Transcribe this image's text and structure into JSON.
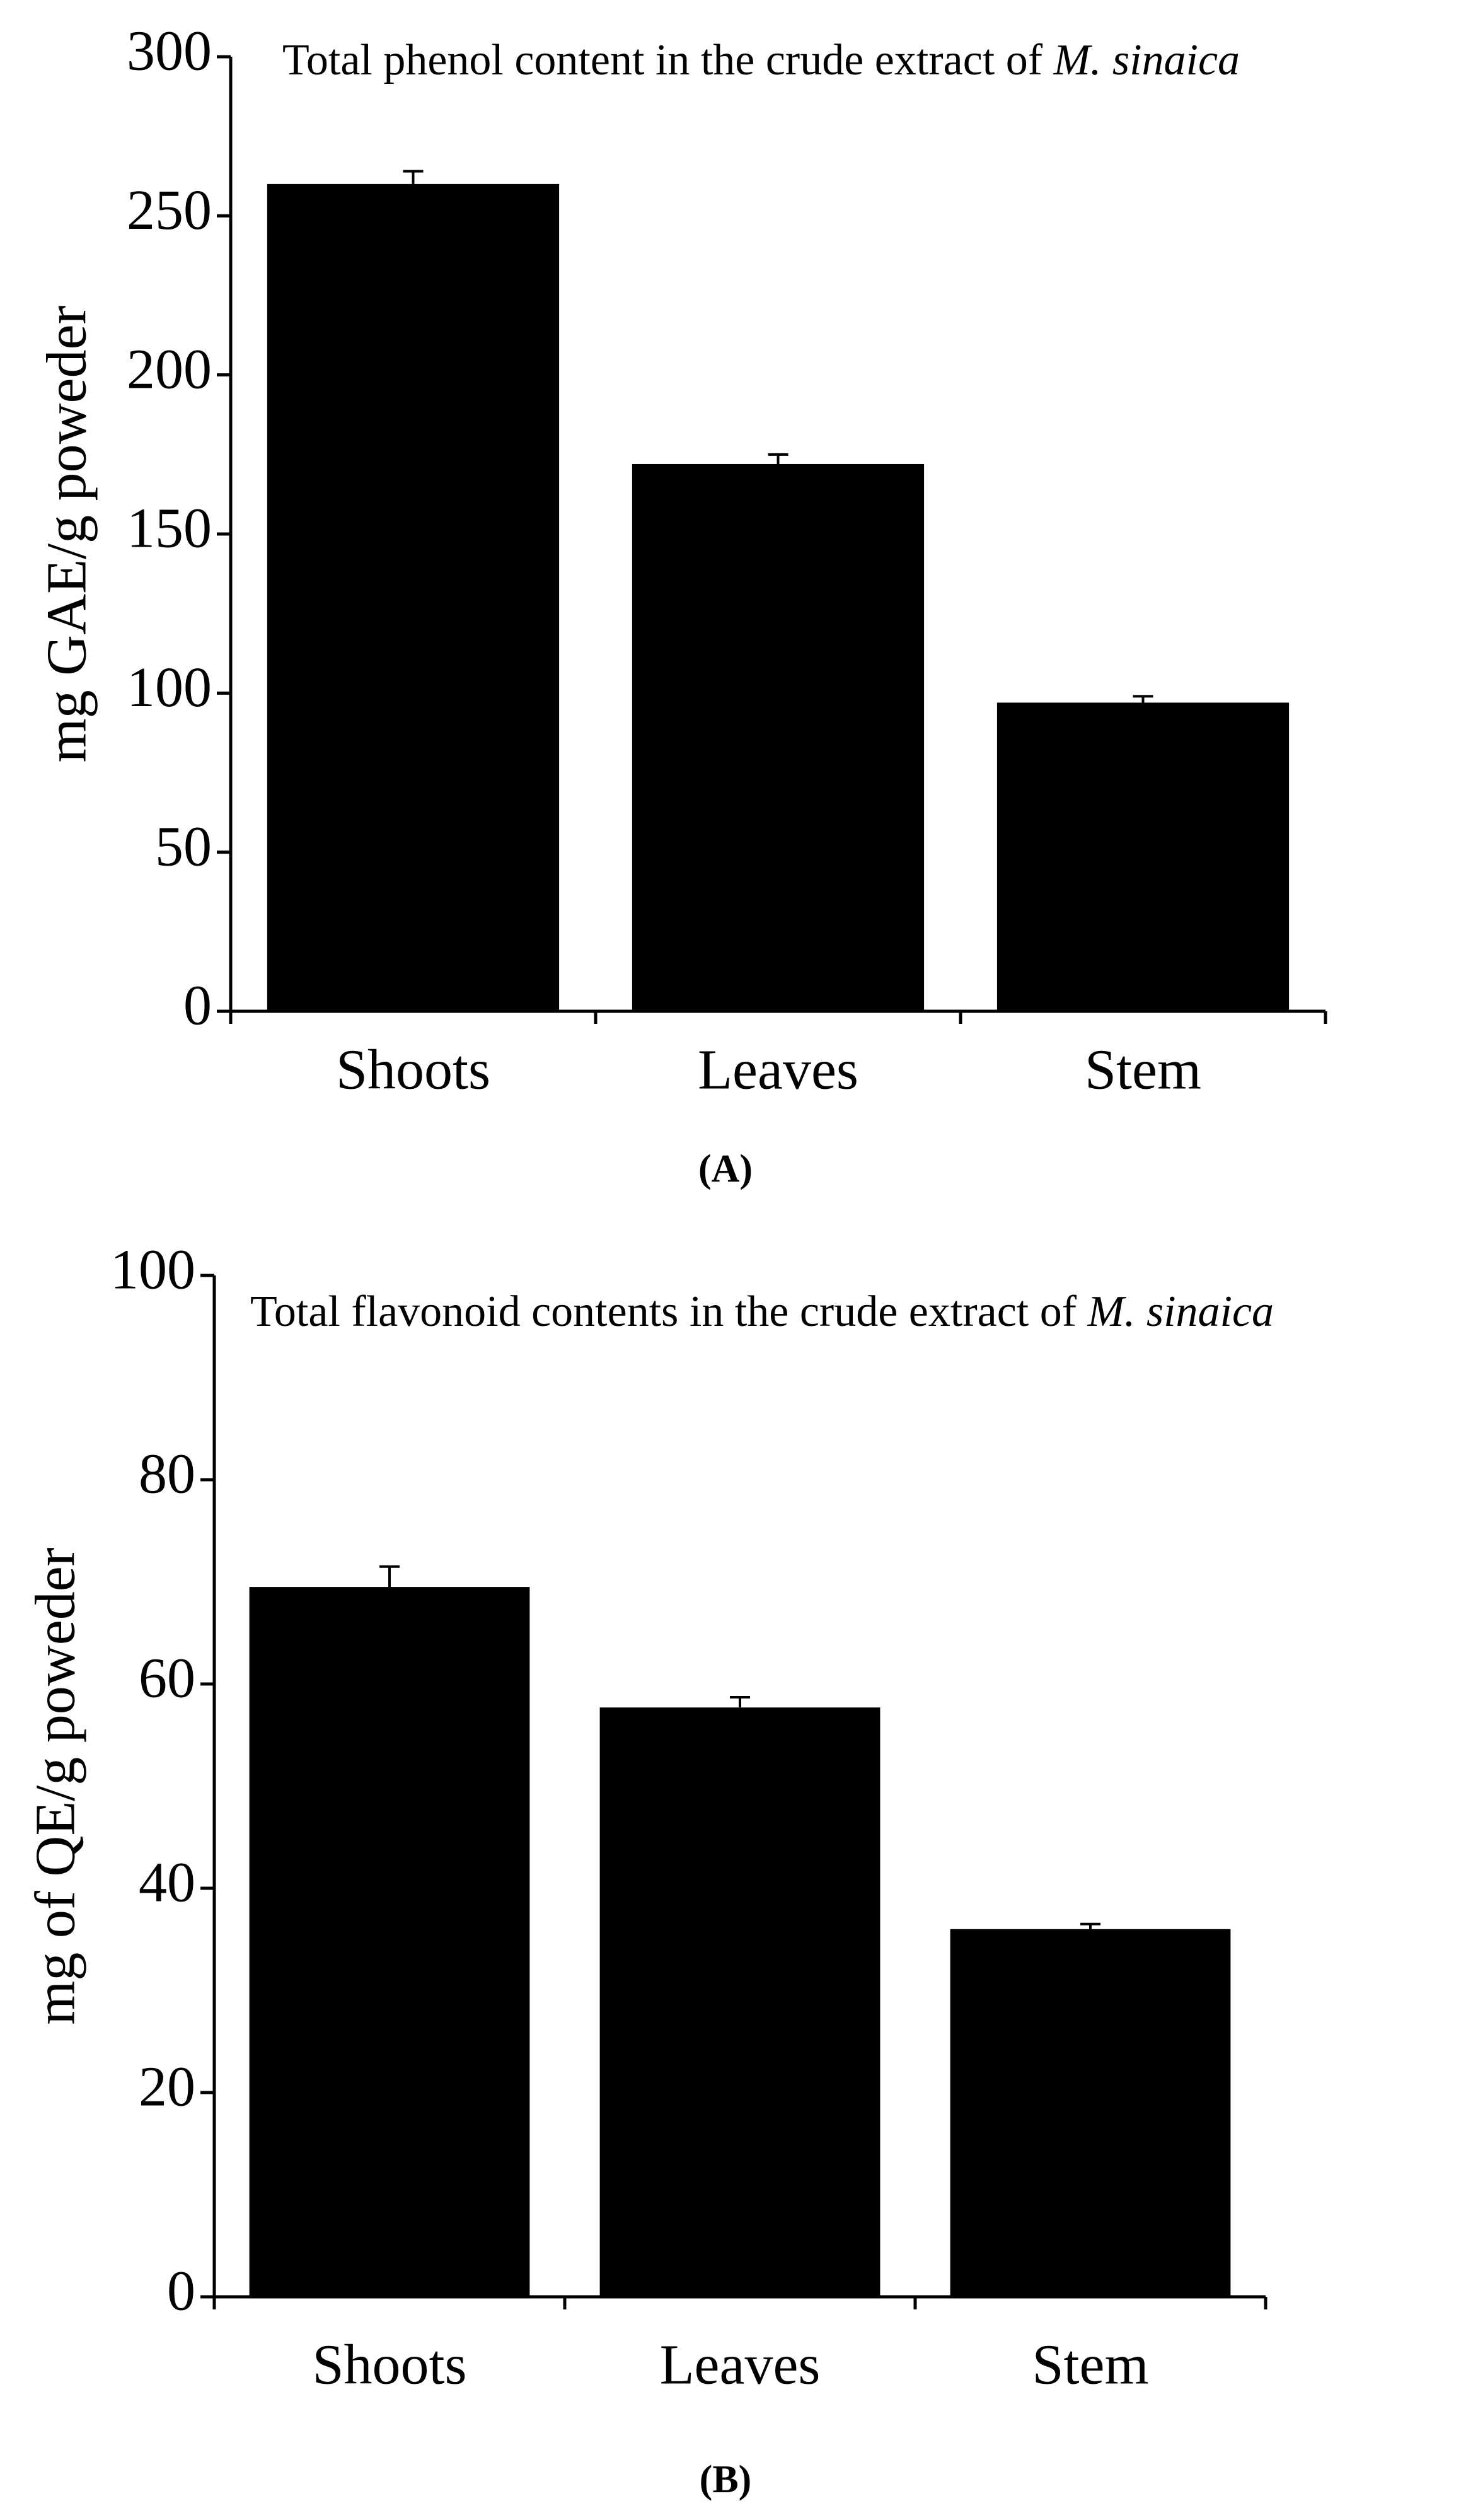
{
  "chart_data": [
    {
      "type": "bar",
      "title": "Total phenol content in the crude extract of",
      "title_species": "M. sinaica",
      "y_label": "mg GAE/g poweder",
      "panel_label": "(A)",
      "categories": [
        "Shoots",
        "Leaves",
        "Stem"
      ],
      "values": [
        260,
        172,
        97
      ],
      "errors": [
        4,
        3,
        2
      ],
      "color": "#000000",
      "ylim": [
        0,
        300
      ],
      "yticks": [
        0,
        50,
        100,
        150,
        200,
        250,
        300
      ]
    },
    {
      "type": "bar",
      "title": "Total flavonoid contents in the crude extract of",
      "title_species": "M. sinaica",
      "y_label": "mg of QE/g poweder",
      "panel_label": "(B)",
      "categories": [
        "Shoots",
        "Leaves",
        "Stem"
      ],
      "values": [
        69.5,
        57.7,
        36
      ],
      "errors": [
        2,
        1,
        0.5
      ],
      "color": "#000000",
      "ylim": [
        0,
        100
      ],
      "yticks": [
        0,
        20,
        40,
        60,
        80,
        100
      ]
    }
  ]
}
